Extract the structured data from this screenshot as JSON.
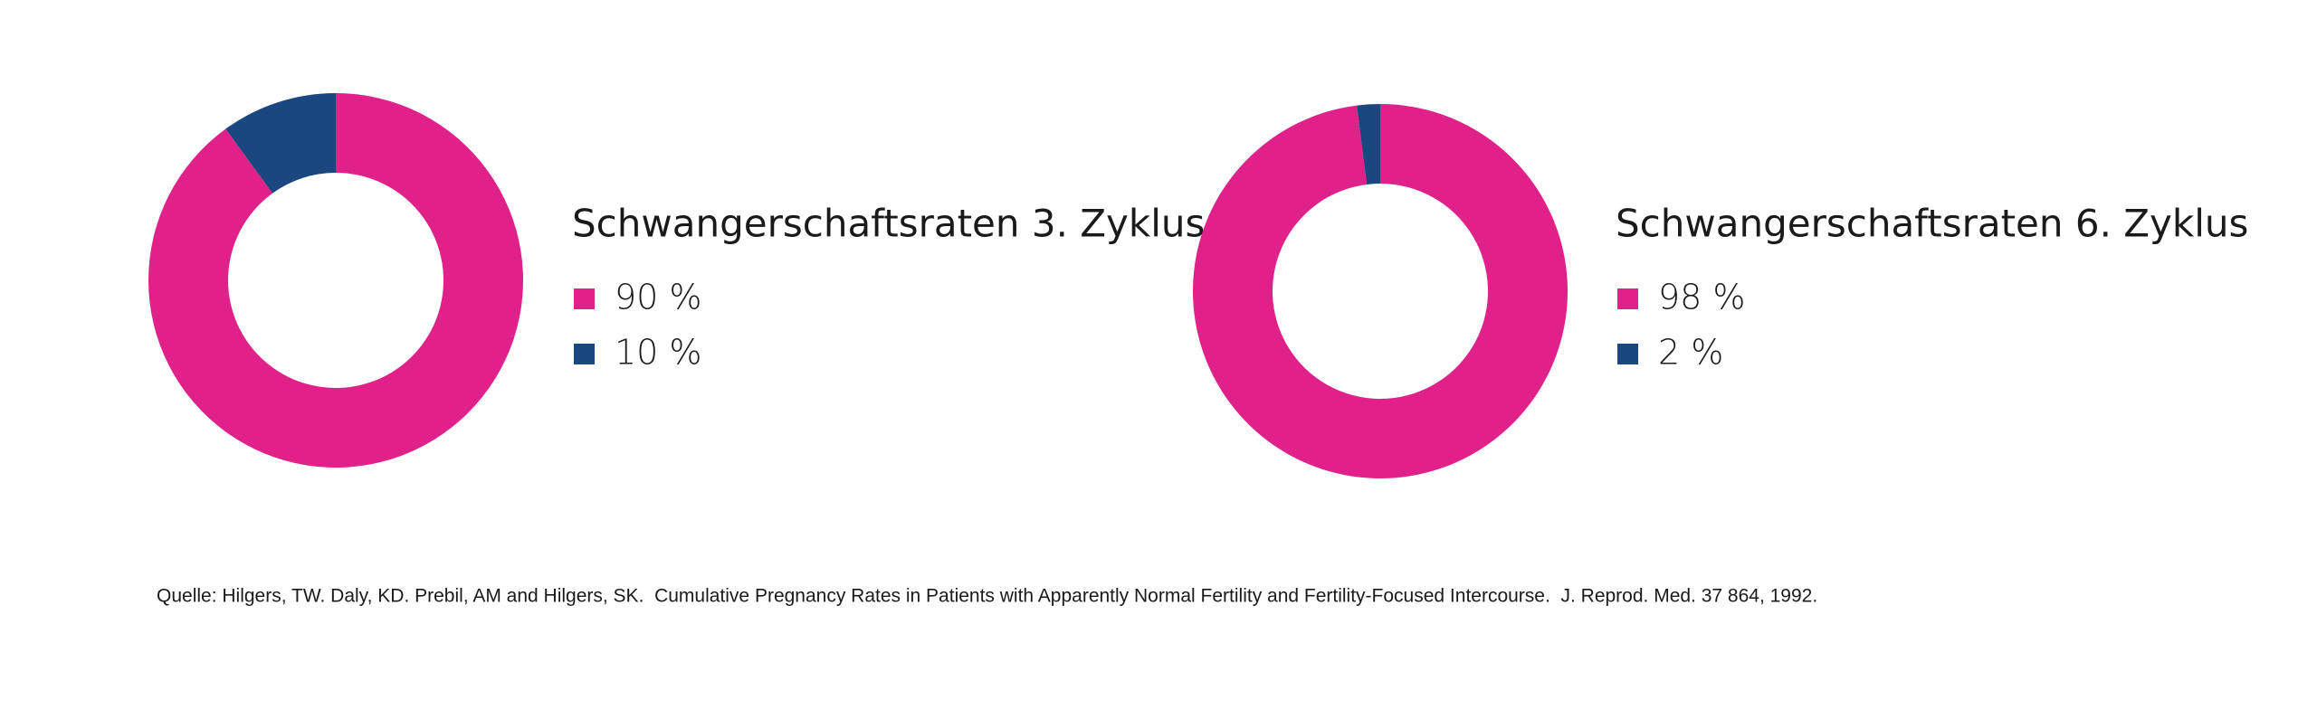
{
  "chart_data": [
    {
      "type": "donut",
      "title": "Schwangerschaftsraten 3. Zyklus",
      "values": [
        90,
        10
      ],
      "value_labels": [
        "90 %",
        "10 %"
      ],
      "colors": [
        "#e0218a",
        "#1a4780"
      ]
    },
    {
      "type": "donut",
      "title": "Schwangerschaftsraten 6. Zyklus",
      "values": [
        98,
        2
      ],
      "value_labels": [
        "98 %",
        "2 %"
      ],
      "colors": [
        "#e0218a",
        "#1a4780"
      ]
    }
  ],
  "source": "Quelle: Hilgers, TW. Daly, KD. Prebil, AM and Hilgers, SK.  Cumulative Pregnancy Rates in Patients with Apparently Normal Fertility and Fertility-Focused Intercourse.  J. Reprod. Med. 37 864, 1992."
}
